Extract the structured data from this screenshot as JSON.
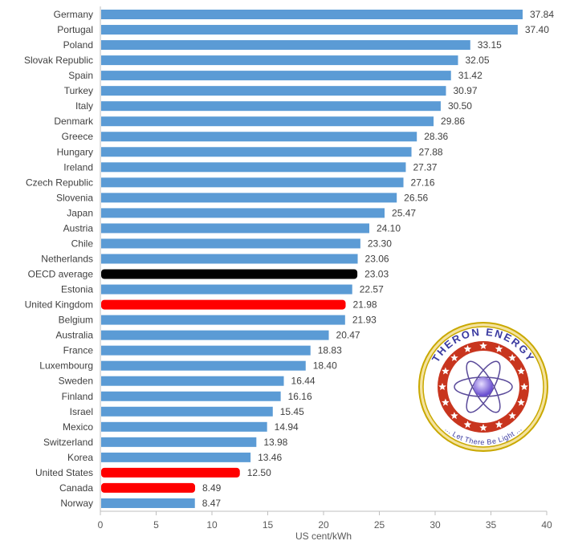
{
  "chart_data": {
    "type": "bar",
    "orientation": "horizontal",
    "title": "",
    "xlabel": "US cent/kWh",
    "ylabel": "",
    "xlim": [
      0,
      40
    ],
    "xticks": [
      0,
      5,
      10,
      15,
      20,
      25,
      30,
      35,
      40
    ],
    "grid": false,
    "categories": [
      "Germany",
      "Portugal",
      "Poland",
      "Slovak Republic",
      "Spain",
      "Turkey",
      "Italy",
      "Denmark",
      "Greece",
      "Hungary",
      "Ireland",
      "Czech Republic",
      "Slovenia",
      "Japan",
      "Austria",
      "Chile",
      "Netherlands",
      "OECD average",
      "Estonia",
      "United Kingdom",
      "Belgium",
      "Australia",
      "France",
      "Luxembourg",
      "Sweden",
      "Finland",
      "Israel",
      "Mexico",
      "Switzerland",
      "Korea",
      "United States",
      "Canada",
      "Norway"
    ],
    "values": [
      37.84,
      37.4,
      33.15,
      32.05,
      31.42,
      30.97,
      30.5,
      29.86,
      28.36,
      27.88,
      27.37,
      27.16,
      26.56,
      25.47,
      24.1,
      23.3,
      23.06,
      23.03,
      22.57,
      21.98,
      21.93,
      20.47,
      18.83,
      18.4,
      16.44,
      16.16,
      15.45,
      14.94,
      13.98,
      13.46,
      12.5,
      8.49,
      8.47
    ],
    "data_labels": [
      "37.84",
      "37.40",
      "33.15",
      "32.05",
      "31.42",
      "30.97",
      "30.50",
      "29.86",
      "28.36",
      "27.88",
      "27.37",
      "27.16",
      "26.56",
      "25.47",
      "24.10",
      "23.30",
      "23.06",
      "23.03",
      "22.57",
      "21.98",
      "21.93",
      "20.47",
      "18.83",
      "18.40",
      "16.44",
      "16.16",
      "15.45",
      "14.94",
      "13.98",
      "13.46",
      "12.50",
      "8.49",
      "8.47"
    ],
    "highlight": {
      "OECD average": "#000000",
      "United Kingdom": "#ff0000",
      "United States": "#ff0000",
      "Canada": "#ff0000"
    },
    "bar_color": "#5b9bd5"
  },
  "logo": {
    "text_top": "THERON ENERGY",
    "text_bottom": "... Let There Be Light ..."
  }
}
